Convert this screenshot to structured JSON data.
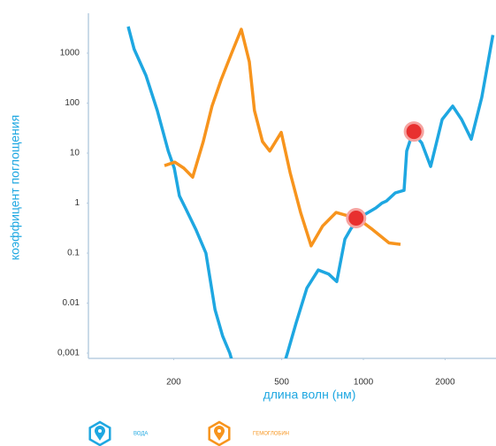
{
  "chart_data": {
    "type": "line",
    "xlabel": "длина волн (нм)",
    "ylabel": "коэффицент поглощения",
    "xscale": "log",
    "yscale": "log",
    "xlim": [
      100,
      3000
    ],
    "ylim": [
      0.0008,
      4000
    ],
    "xticks": [
      200,
      500,
      1000,
      2000
    ],
    "yticks": [
      1000,
      100,
      10,
      1,
      0.1,
      0.01,
      {
        "value": 0.001,
        "label": "0,001"
      }
    ],
    "series": [
      {
        "name": "ВОДА",
        "color": "#1ea7e1",
        "x": [
          136,
          143,
          158,
          174,
          191,
          201,
          210,
          221,
          242,
          263,
          284,
          303,
          322,
          334,
          505,
          525,
          565,
          619,
          682,
          746,
          798,
          855,
          900,
          977,
          1111,
          1170,
          1216,
          1310,
          1412,
          1444,
          1521,
          1640,
          1769,
          1950,
          2133,
          2300,
          2496,
          2730,
          3000
        ],
        "values": [
          3400,
          1200,
          360,
          71,
          11,
          5,
          1.4,
          0.8,
          0.29,
          0.1,
          0.0074,
          0.0022,
          0.001,
          0.0005,
          0.0005,
          0.001,
          0.004,
          0.02,
          0.046,
          0.038,
          0.027,
          0.19,
          0.31,
          0.53,
          0.8,
          1.0,
          1.1,
          1.6,
          1.8,
          11,
          26,
          16,
          5.4,
          47,
          87,
          47,
          19,
          130,
          2300
        ]
      },
      {
        "name": "ГЕМОГЛОБИН",
        "color": "#f7941d",
        "x": [
          185,
          202,
          218,
          235,
          257,
          277,
          299,
          327,
          355,
          380,
          397,
          425,
          452,
          498,
          537,
          587,
          642,
          708,
          793,
          855,
          955,
          1069,
          1243,
          1370
        ],
        "values": [
          5.6,
          6.6,
          5,
          3.3,
          17,
          87,
          290,
          1000,
          3000,
          670,
          71,
          17,
          11,
          26,
          4.1,
          0.65,
          0.14,
          0.35,
          0.65,
          0.58,
          0.49,
          0.31,
          0.16,
          0.15
        ]
      }
    ],
    "markers": {
      "color": "#e8302f",
      "x": [
        940,
        1535
      ],
      "values": [
        0.5,
        27
      ]
    }
  }
}
